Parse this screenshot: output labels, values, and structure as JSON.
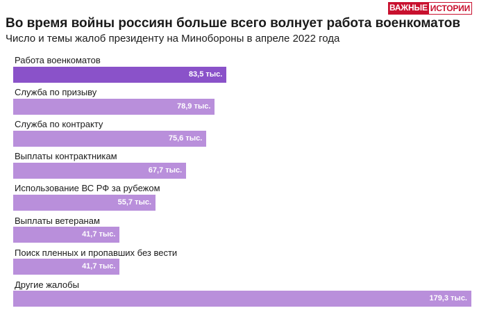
{
  "logo": {
    "part1": "ВАЖНЫЕ",
    "part2": "ИСТОРИИ"
  },
  "title": "Во время войны россиян больше всего волнует работа военкоматов",
  "subtitle": "Число и темы жалоб президенту на Минобороны в апреле 2022 года",
  "colors": {
    "highlight": "#8a52c9",
    "normal": "#b98fdb",
    "logo_red": "#c8102e"
  },
  "chart_data": {
    "type": "bar",
    "orientation": "horizontal",
    "categories": [
      "Работа военкоматов",
      "Служба по призыву",
      "Служба по контракту",
      "Выплаты контрактникам",
      "Использование ВС РФ за рубежом",
      "Выплаты ветеранам",
      "Поиск пленных и пропавших без вести",
      "Другие жалобы"
    ],
    "values": [
      83.5,
      78.9,
      75.6,
      67.7,
      55.7,
      41.7,
      41.7,
      179.3
    ],
    "value_labels": [
      "83,5 тыс.",
      "78,9 тыс.",
      "75,6 тыс.",
      "67,7 тыс.",
      "55,7 тыс.",
      "41,7 тыс.",
      "41,7 тыс.",
      "179,3 тыс."
    ],
    "highlight_index": 0,
    "unit": "тыс.",
    "xlim": [
      0,
      179.3
    ],
    "grid": false,
    "legend": "none"
  }
}
